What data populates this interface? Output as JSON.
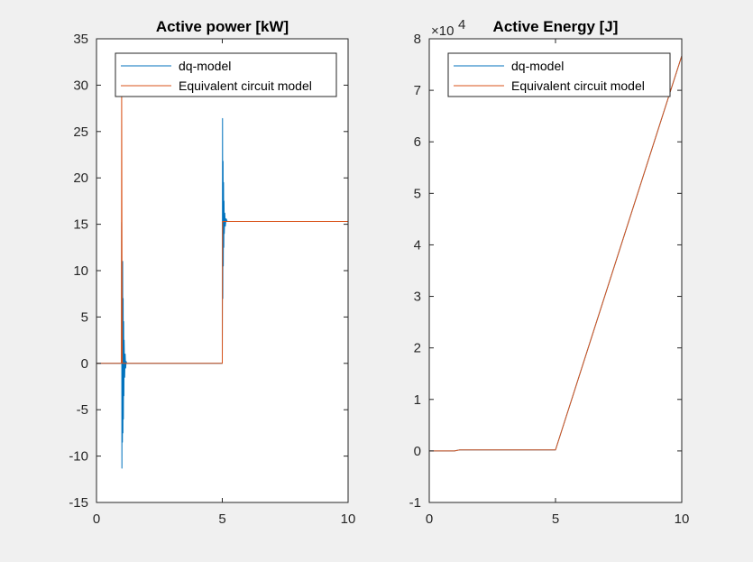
{
  "chart_data": [
    {
      "type": "line",
      "title": "Active power [kW]",
      "xlim": [
        0,
        10
      ],
      "ylim": [
        -15,
        35
      ],
      "x_ticks": [
        0,
        5,
        10
      ],
      "y_ticks": [
        -15,
        -10,
        -5,
        0,
        5,
        10,
        15,
        20,
        25,
        30,
        35
      ],
      "x_tick_labels": [
        "0",
        "5",
        "10"
      ],
      "y_tick_labels": [
        "-15",
        "-10",
        "-5",
        "0",
        "5",
        "10",
        "15",
        "20",
        "25",
        "30",
        "35"
      ],
      "exponent_label": "",
      "grid": false,
      "legend_position": "top",
      "series": [
        {
          "name": "dq-model",
          "color": "#0072BD",
          "x": [
            0,
            0.99,
            1.0,
            1.01,
            1.02,
            1.03,
            1.04,
            1.05,
            1.06,
            1.07,
            1.08,
            1.09,
            1.1,
            1.12,
            1.14,
            1.16,
            1.18,
            1.2,
            5.0,
            5.01,
            5.02,
            5.03,
            5.04,
            5.05,
            5.06,
            5.07,
            5.08,
            5.1,
            5.12,
            5.15,
            5.2,
            10
          ],
          "y": [
            0,
            0,
            15.2,
            -11.3,
            6.5,
            -8.5,
            11,
            -7.5,
            7,
            -6,
            4.5,
            -3.5,
            2.5,
            -1.5,
            1,
            -0.5,
            0.2,
            0,
            0,
            26.4,
            7,
            21.8,
            10.5,
            19.5,
            12.5,
            17.5,
            14,
            16.2,
            14.8,
            15.6,
            15.3,
            15.3
          ]
        },
        {
          "name": "Equivalent circuit model",
          "color": "#D95319",
          "x": [
            0,
            0.99,
            1.0,
            1.01,
            1.02,
            1.03,
            1.05,
            1.1,
            5.0,
            5.01,
            5.05,
            10
          ],
          "y": [
            0,
            0,
            29.8,
            15,
            0.5,
            0,
            0,
            0,
            0,
            15.3,
            15.3,
            15.3
          ]
        }
      ]
    },
    {
      "type": "line",
      "title": "Active Energy [J]",
      "xlim": [
        0,
        10
      ],
      "ylim": [
        -1,
        8
      ],
      "x_ticks": [
        0,
        5,
        10
      ],
      "y_ticks": [
        -1,
        0,
        1,
        2,
        3,
        4,
        5,
        6,
        7,
        8
      ],
      "x_tick_labels": [
        "0",
        "5",
        "10"
      ],
      "y_tick_labels": [
        "-1",
        "0",
        "1",
        "2",
        "3",
        "4",
        "5",
        "6",
        "7",
        "8"
      ],
      "exponent_label": "×10",
      "exponent_power": "4",
      "grid": false,
      "legend_position": "top",
      "series": [
        {
          "name": "dq-model",
          "color": "#0072BD",
          "x": [
            0,
            1.0,
            1.2,
            5.0,
            10
          ],
          "y": [
            0,
            0,
            0.02,
            0.02,
            7.67
          ]
        },
        {
          "name": "Equivalent circuit model",
          "color": "#D95319",
          "x": [
            0,
            1.0,
            1.2,
            5.0,
            10
          ],
          "y": [
            0,
            0,
            0.02,
            0.02,
            7.67
          ]
        }
      ]
    }
  ]
}
